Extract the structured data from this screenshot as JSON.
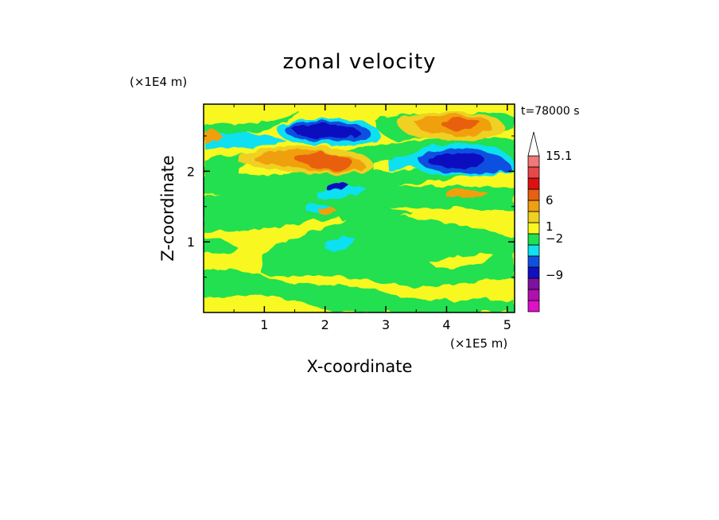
{
  "chart_data": {
    "type": "heatmap",
    "title": "zonal velocity",
    "xlabel": "X-coordinate",
    "ylabel": "Z-coordinate",
    "x_unit": "(×1E5 m)",
    "y_unit": "(×1E4 m)",
    "time_label": "t=78000 s",
    "xlim": [
      0,
      5.12
    ],
    "ylim": [
      0,
      2.95
    ],
    "x_ticks": [
      1,
      2,
      3,
      4,
      5
    ],
    "y_ticks": [
      1,
      2
    ],
    "x_tick_labels": [
      "1",
      "2",
      "3",
      "4",
      "5"
    ],
    "y_tick_labels": [
      "1",
      "2"
    ],
    "grid": false,
    "colorbar": {
      "levels_bottom_to_top": [
        {
          "range": "< -12",
          "color": "#e010c8"
        },
        {
          "range": "-12 to -9",
          "color": "#b010b0"
        },
        {
          "range": "-9 to -6",
          "color": "#8010a0"
        },
        {
          "range": "-6 to -4",
          "color": "#1010c0"
        },
        {
          "range": "-4 to -2",
          "color": "#1050e0"
        },
        {
          "range": "-2 to -1",
          "color": "#10e0f0"
        },
        {
          "range": "-1 to 0",
          "color": "#20e050"
        },
        {
          "range": "0 to 1",
          "color": "#f8f820"
        },
        {
          "range": "1 to 2",
          "color": "#f0d020"
        },
        {
          "range": "2 to 3",
          "color": "#f0a010"
        },
        {
          "range": "3 to 6",
          "color": "#e86010"
        },
        {
          "range": "6 to 9",
          "color": "#e01010"
        },
        {
          "range": "9 to 12",
          "color": "#e84848"
        },
        {
          "range": "12 to 15.1",
          "color": "#f07878"
        },
        {
          "range": "> 15.1",
          "color": "#f8b0b0"
        }
      ],
      "labels": [
        "15.1",
        "6",
        "1",
        "−2",
        "−9"
      ]
    },
    "regions": [
      {
        "value_range": "-6 to -4",
        "x_center": 1.75,
        "z_center": 2.6,
        "desc": "strong negative jet core"
      },
      {
        "value_range": "-6 to -4",
        "x_center": 4.2,
        "z_center": 2.17,
        "desc": "strong negative jet core"
      },
      {
        "value_range": "3 to 6",
        "x_center": 2.0,
        "z_center": 2.15,
        "desc": "positive core"
      },
      {
        "value_range": "3 to 6",
        "x_center": 4.3,
        "z_center": 2.6,
        "desc": "positive core"
      }
    ]
  }
}
